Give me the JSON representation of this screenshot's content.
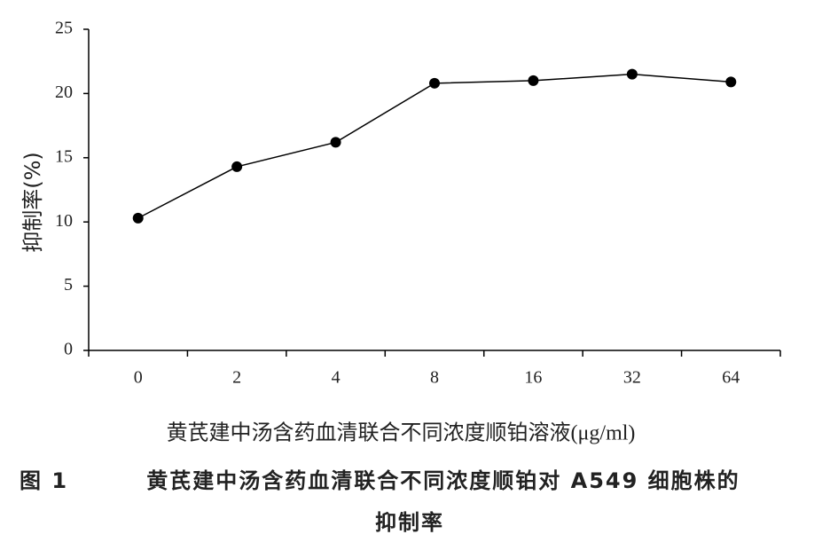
{
  "chart_data": {
    "type": "line",
    "categories": [
      "0",
      "2",
      "4",
      "8",
      "16",
      "32",
      "64"
    ],
    "series": [
      {
        "color": "#000000",
        "values": [
          10.3,
          14.3,
          16.2,
          20.8,
          21.0,
          21.5,
          20.9
        ]
      }
    ],
    "ylim": [
      0,
      25
    ],
    "yticks": [
      0,
      5,
      10,
      15,
      20,
      25
    ],
    "x_label": "黄芪建中汤含药血清联合不同浓度顺铂溶液(μg/ml)",
    "y_label": "抑制率(%)",
    "figure_label": "图 1",
    "title_lines": [
      "黄芪建中汤含药血清联合不同浓度顺铂对 A549 细胞株的",
      "抑制率"
    ],
    "grid": false
  }
}
